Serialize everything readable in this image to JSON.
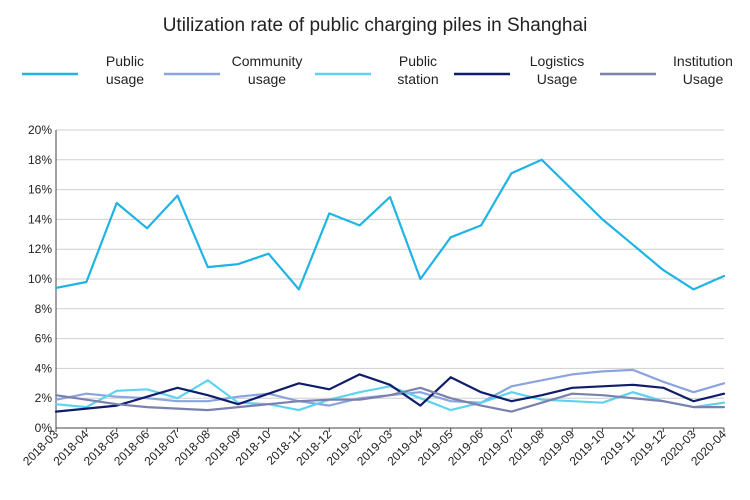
{
  "chart_data": {
    "type": "line",
    "title": "Utilization rate of public charging piles in Shanghai",
    "xlabel": "",
    "ylabel": "",
    "ylim": [
      0,
      20
    ],
    "yticks": [
      "0%",
      "2%",
      "4%",
      "6%",
      "8%",
      "10%",
      "12%",
      "14%",
      "16%",
      "18%",
      "20%"
    ],
    "grid": true,
    "legend_position": "top",
    "categories": [
      "2018-03",
      "2018-04",
      "2018-05",
      "2018-06",
      "2018-07",
      "2018-08",
      "2018-09",
      "2018-10",
      "2018-11",
      "2018-12",
      "2019-02",
      "2019-03",
      "2019-04",
      "2019-05",
      "2019-06",
      "2019-07",
      "2019-08",
      "2019-09",
      "2019-10",
      "2019-11",
      "2019-12",
      "2020-03",
      "2020-04"
    ],
    "series": [
      {
        "name": "Public usage",
        "label_lines": [
          "Public",
          "usage"
        ],
        "color": "#1fb4e3",
        "values": [
          9.4,
          9.8,
          15.1,
          13.4,
          15.6,
          10.8,
          11.0,
          11.7,
          9.3,
          14.4,
          13.6,
          15.5,
          10.0,
          12.8,
          13.6,
          17.1,
          18.0,
          16.0,
          14.0,
          12.3,
          10.6,
          9.3,
          10.2
        ]
      },
      {
        "name": "Community usage",
        "label_lines": [
          "Community",
          "usage"
        ],
        "color": "#8aa4dd",
        "values": [
          1.9,
          2.3,
          2.1,
          2.0,
          1.8,
          1.8,
          2.1,
          2.3,
          1.8,
          1.5,
          2.0,
          2.2,
          2.4,
          1.8,
          1.7,
          2.8,
          3.2,
          3.6,
          3.8,
          3.9,
          3.1,
          2.4,
          3.0
        ]
      },
      {
        "name": "Public station",
        "label_lines": [
          "Public",
          "station"
        ],
        "color": "#5ed3f0",
        "values": [
          1.6,
          1.4,
          2.5,
          2.6,
          2.0,
          3.2,
          1.7,
          1.6,
          1.2,
          1.9,
          2.4,
          2.8,
          2.0,
          1.2,
          1.7,
          2.4,
          1.9,
          1.8,
          1.7,
          2.4,
          1.8,
          1.4,
          1.7
        ]
      },
      {
        "name": "Logistics Usage",
        "label_lines": [
          "Logistics",
          "Usage"
        ],
        "color": "#0f1d6b",
        "values": [
          1.1,
          1.3,
          1.5,
          2.1,
          2.7,
          2.2,
          1.6,
          2.3,
          3.0,
          2.6,
          3.6,
          2.9,
          1.5,
          3.4,
          2.4,
          1.8,
          2.2,
          2.7,
          2.8,
          2.9,
          2.7,
          1.8,
          2.3
        ]
      },
      {
        "name": "Institution Usage",
        "label_lines": [
          "Institution",
          "Usage"
        ],
        "color": "#7c80ad",
        "values": [
          2.2,
          1.9,
          1.6,
          1.4,
          1.3,
          1.2,
          1.4,
          1.6,
          1.8,
          1.9,
          1.9,
          2.2,
          2.7,
          2.0,
          1.5,
          1.1,
          1.7,
          2.3,
          2.2,
          2.0,
          1.8,
          1.4,
          1.4
        ]
      }
    ]
  }
}
